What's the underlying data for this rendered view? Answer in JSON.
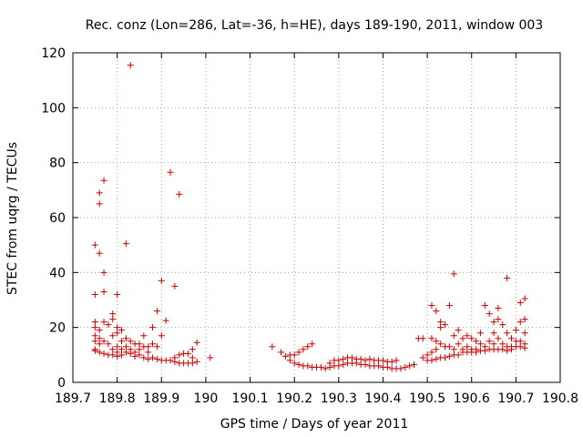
{
  "chart_data": {
    "type": "scatter",
    "title": "Rec. conz (Lon=286, Lat=-36, h=HE), days 189-190, 2011, window 003",
    "xlabel": "GPS time / Days of year 2011",
    "ylabel": "STEC from uqrg / TECUs",
    "xlim": [
      189.7,
      190.8
    ],
    "ylim": [
      0,
      120
    ],
    "xticks": [
      189.7,
      189.8,
      189.9,
      190,
      190.1,
      190.2,
      190.3,
      190.4,
      190.5,
      190.6,
      190.7,
      190.8
    ],
    "xtick_labels": [
      "189.7",
      "189.8",
      "189.9",
      "190",
      "190.1",
      "190.2",
      "190.3",
      "190.4",
      "190.5",
      "190.6",
      "190.7",
      "190.8"
    ],
    "yticks": [
      0,
      20,
      40,
      60,
      80,
      100,
      120
    ],
    "ytick_labels": [
      "0",
      "20",
      "40",
      "60",
      "80",
      "100",
      "120"
    ],
    "grid": true,
    "marker": "+",
    "color": "#cc0000",
    "series": [
      {
        "points": [
          [
            189.75,
            50
          ],
          [
            189.75,
            32
          ],
          [
            189.75,
            22
          ],
          [
            189.75,
            20
          ],
          [
            189.75,
            17
          ],
          [
            189.75,
            15
          ],
          [
            189.75,
            12
          ],
          [
            189.75,
            11.5
          ],
          [
            189.76,
            69
          ],
          [
            189.76,
            65
          ],
          [
            189.76,
            47
          ],
          [
            189.76,
            19
          ],
          [
            189.76,
            16
          ],
          [
            189.76,
            14
          ],
          [
            189.76,
            11
          ],
          [
            189.77,
            73.5
          ],
          [
            189.77,
            40
          ],
          [
            189.77,
            33
          ],
          [
            189.77,
            22
          ],
          [
            189.77,
            15
          ],
          [
            189.77,
            10.5
          ],
          [
            189.78,
            21
          ],
          [
            189.78,
            14
          ],
          [
            189.78,
            10
          ],
          [
            189.79,
            25
          ],
          [
            189.79,
            23
          ],
          [
            189.79,
            17
          ],
          [
            189.79,
            12
          ],
          [
            189.79,
            10
          ],
          [
            189.8,
            32
          ],
          [
            189.8,
            20
          ],
          [
            189.8,
            18
          ],
          [
            189.8,
            13
          ],
          [
            189.8,
            11
          ],
          [
            189.8,
            9.5
          ],
          [
            189.81,
            19
          ],
          [
            189.81,
            15
          ],
          [
            189.81,
            12
          ],
          [
            189.81,
            10
          ],
          [
            189.82,
            50.5
          ],
          [
            189.82,
            16
          ],
          [
            189.82,
            13
          ],
          [
            189.82,
            11
          ],
          [
            189.83,
            115.5
          ],
          [
            189.83,
            15
          ],
          [
            189.83,
            12
          ],
          [
            189.83,
            10.5
          ],
          [
            189.84,
            14
          ],
          [
            189.84,
            11
          ],
          [
            189.84,
            9.5
          ],
          [
            189.85,
            14
          ],
          [
            189.85,
            12
          ],
          [
            189.85,
            10
          ],
          [
            189.86,
            17
          ],
          [
            189.86,
            13
          ],
          [
            189.86,
            9
          ],
          [
            189.87,
            13
          ],
          [
            189.87,
            11
          ],
          [
            189.87,
            8.5
          ],
          [
            189.88,
            20
          ],
          [
            189.88,
            14
          ],
          [
            189.88,
            9
          ],
          [
            189.89,
            26
          ],
          [
            189.89,
            13
          ],
          [
            189.89,
            8.5
          ],
          [
            189.9,
            37
          ],
          [
            189.9,
            17
          ],
          [
            189.9,
            8
          ],
          [
            189.91,
            22.5
          ],
          [
            189.91,
            8
          ],
          [
            189.92,
            76.5
          ],
          [
            189.92,
            8
          ],
          [
            189.93,
            35
          ],
          [
            189.93,
            9
          ],
          [
            189.93,
            7.5
          ],
          [
            189.94,
            68.5
          ],
          [
            189.94,
            10
          ],
          [
            189.94,
            7
          ],
          [
            189.95,
            10.5
          ],
          [
            189.95,
            7
          ],
          [
            189.96,
            10.5
          ],
          [
            189.96,
            7
          ],
          [
            189.97,
            12
          ],
          [
            189.97,
            9
          ],
          [
            189.97,
            7
          ],
          [
            189.98,
            14.5
          ],
          [
            189.98,
            7.5
          ],
          [
            190.01,
            9
          ]
        ]
      },
      {
        "points": [
          [
            190.15,
            13
          ],
          [
            190.17,
            11
          ],
          [
            190.18,
            9.5
          ],
          [
            190.19,
            8
          ],
          [
            190.19,
            10
          ],
          [
            190.2,
            7
          ],
          [
            190.2,
            10
          ],
          [
            190.21,
            6.5
          ],
          [
            190.21,
            11
          ],
          [
            190.22,
            6
          ],
          [
            190.22,
            12
          ],
          [
            190.23,
            6
          ],
          [
            190.23,
            13
          ],
          [
            190.24,
            5.5
          ],
          [
            190.24,
            14
          ],
          [
            190.25,
            5.5
          ],
          [
            190.26,
            5.5
          ],
          [
            190.27,
            5
          ],
          [
            190.28,
            5.5
          ],
          [
            190.28,
            7
          ],
          [
            190.29,
            6
          ],
          [
            190.29,
            8
          ],
          [
            190.3,
            6
          ],
          [
            190.3,
            8
          ],
          [
            190.31,
            6.5
          ],
          [
            190.31,
            8.5
          ],
          [
            190.32,
            7
          ],
          [
            190.32,
            9
          ],
          [
            190.33,
            7
          ],
          [
            190.33,
            9
          ],
          [
            190.34,
            7
          ],
          [
            190.34,
            8.5
          ],
          [
            190.35,
            6.5
          ],
          [
            190.35,
            8.5
          ],
          [
            190.36,
            6.5
          ],
          [
            190.36,
            8
          ],
          [
            190.37,
            6
          ],
          [
            190.37,
            8.5
          ],
          [
            190.38,
            6
          ],
          [
            190.38,
            8
          ],
          [
            190.39,
            6
          ],
          [
            190.39,
            8
          ],
          [
            190.4,
            5.5
          ],
          [
            190.4,
            8
          ],
          [
            190.41,
            5.5
          ],
          [
            190.41,
            7.5
          ],
          [
            190.42,
            5
          ],
          [
            190.42,
            7.5
          ],
          [
            190.43,
            5
          ],
          [
            190.43,
            8
          ],
          [
            190.44,
            5
          ],
          [
            190.45,
            5.5
          ],
          [
            190.46,
            6
          ],
          [
            190.47,
            6.5
          ]
        ]
      },
      {
        "points": [
          [
            190.48,
            16
          ],
          [
            190.49,
            16
          ],
          [
            190.49,
            9
          ],
          [
            190.5,
            10
          ],
          [
            190.5,
            8
          ],
          [
            190.51,
            28
          ],
          [
            190.51,
            16
          ],
          [
            190.51,
            11
          ],
          [
            190.51,
            8
          ],
          [
            190.52,
            26
          ],
          [
            190.52,
            15
          ],
          [
            190.52,
            12
          ],
          [
            190.52,
            8.5
          ],
          [
            190.53,
            22
          ],
          [
            190.53,
            20
          ],
          [
            190.53,
            14
          ],
          [
            190.53,
            9
          ],
          [
            190.54,
            21
          ],
          [
            190.54,
            13
          ],
          [
            190.54,
            9
          ],
          [
            190.55,
            28
          ],
          [
            190.55,
            13
          ],
          [
            190.55,
            9.5
          ],
          [
            190.56,
            39.5
          ],
          [
            190.56,
            17
          ],
          [
            190.56,
            12
          ],
          [
            190.56,
            10
          ],
          [
            190.57,
            19
          ],
          [
            190.57,
            14
          ],
          [
            190.57,
            10
          ],
          [
            190.58,
            16
          ],
          [
            190.58,
            12
          ],
          [
            190.58,
            11
          ],
          [
            190.59,
            17
          ],
          [
            190.59,
            13
          ],
          [
            190.59,
            11
          ],
          [
            190.6,
            16
          ],
          [
            190.6,
            12
          ],
          [
            190.6,
            11
          ],
          [
            190.61,
            15
          ],
          [
            190.61,
            12
          ],
          [
            190.61,
            11
          ],
          [
            190.62,
            18
          ],
          [
            190.62,
            14
          ],
          [
            190.62,
            11.5
          ],
          [
            190.63,
            28
          ],
          [
            190.63,
            13
          ],
          [
            190.63,
            11.5
          ],
          [
            190.64,
            25
          ],
          [
            190.64,
            15
          ],
          [
            190.64,
            12
          ],
          [
            190.65,
            22
          ],
          [
            190.65,
            18
          ],
          [
            190.65,
            14
          ],
          [
            190.65,
            12
          ],
          [
            190.66,
            27
          ],
          [
            190.66,
            23
          ],
          [
            190.66,
            16
          ],
          [
            190.66,
            12
          ],
          [
            190.67,
            21
          ],
          [
            190.67,
            14
          ],
          [
            190.67,
            12
          ],
          [
            190.68,
            38
          ],
          [
            190.68,
            18
          ],
          [
            190.68,
            13
          ],
          [
            190.68,
            11.5
          ],
          [
            190.69,
            16
          ],
          [
            190.69,
            13
          ],
          [
            190.69,
            12
          ],
          [
            190.7,
            19
          ],
          [
            190.7,
            15
          ],
          [
            190.7,
            13
          ],
          [
            190.71,
            29
          ],
          [
            190.71,
            22
          ],
          [
            190.71,
            15
          ],
          [
            190.71,
            13
          ],
          [
            190.72,
            30.5
          ],
          [
            190.72,
            23
          ],
          [
            190.72,
            18
          ],
          [
            190.72,
            14
          ],
          [
            190.72,
            12.5
          ]
        ]
      }
    ]
  }
}
